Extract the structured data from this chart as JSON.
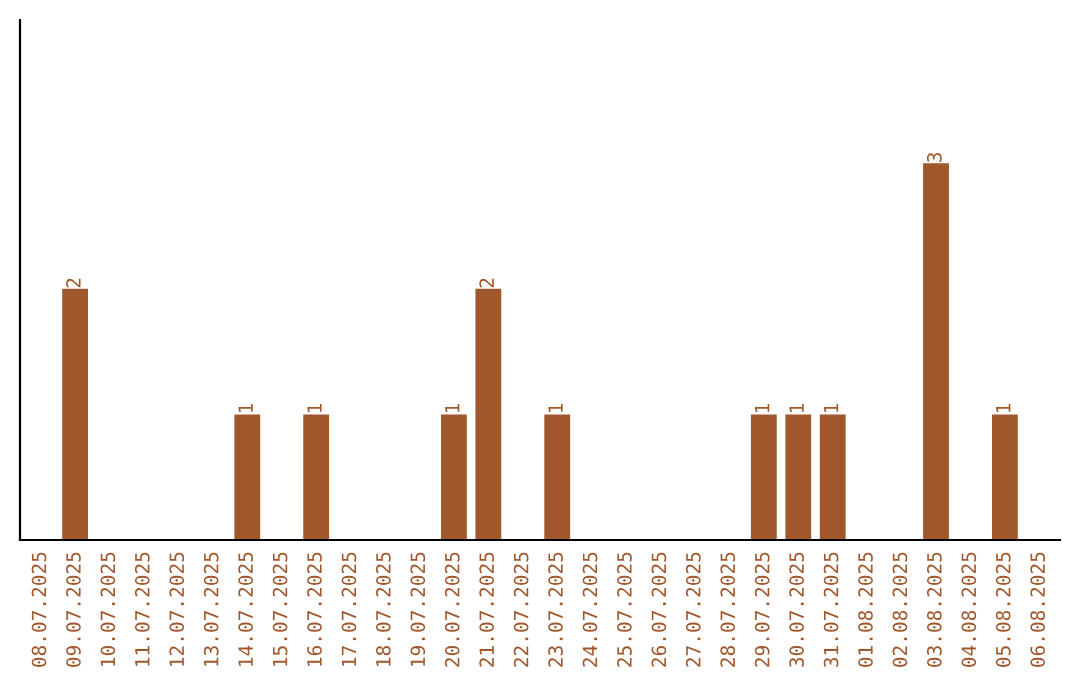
{
  "chart_data": {
    "type": "bar",
    "categories": [
      "08.07.2025",
      "09.07.2025",
      "10.07.2025",
      "11.07.2025",
      "12.07.2025",
      "13.07.2025",
      "14.07.2025",
      "15.07.2025",
      "16.07.2025",
      "17.07.2025",
      "18.07.2025",
      "19.07.2025",
      "20.07.2025",
      "21.07.2025",
      "22.07.2025",
      "23.07.2025",
      "24.07.2025",
      "25.07.2025",
      "26.07.2025",
      "27.07.2025",
      "28.07.2025",
      "29.07.2025",
      "30.07.2025",
      "31.07.2025",
      "01.08.2025",
      "02.08.2025",
      "03.08.2025",
      "04.08.2025",
      "05.08.2025",
      "06.08.2025"
    ],
    "values": [
      0,
      2,
      0,
      0,
      0,
      0,
      1,
      0,
      1,
      0,
      0,
      0,
      1,
      2,
      0,
      1,
      0,
      0,
      0,
      0,
      0,
      1,
      1,
      1,
      0,
      0,
      3,
      0,
      1,
      0
    ],
    "value_labels": [
      null,
      "2",
      null,
      null,
      null,
      null,
      "1",
      null,
      "1",
      null,
      null,
      null,
      "1",
      "2",
      null,
      "1",
      null,
      null,
      null,
      null,
      null,
      "1",
      "1",
      "1",
      null,
      null,
      "3",
      null,
      "1",
      null
    ],
    "color": "#a0572b",
    "grid": false,
    "legend": false
  }
}
